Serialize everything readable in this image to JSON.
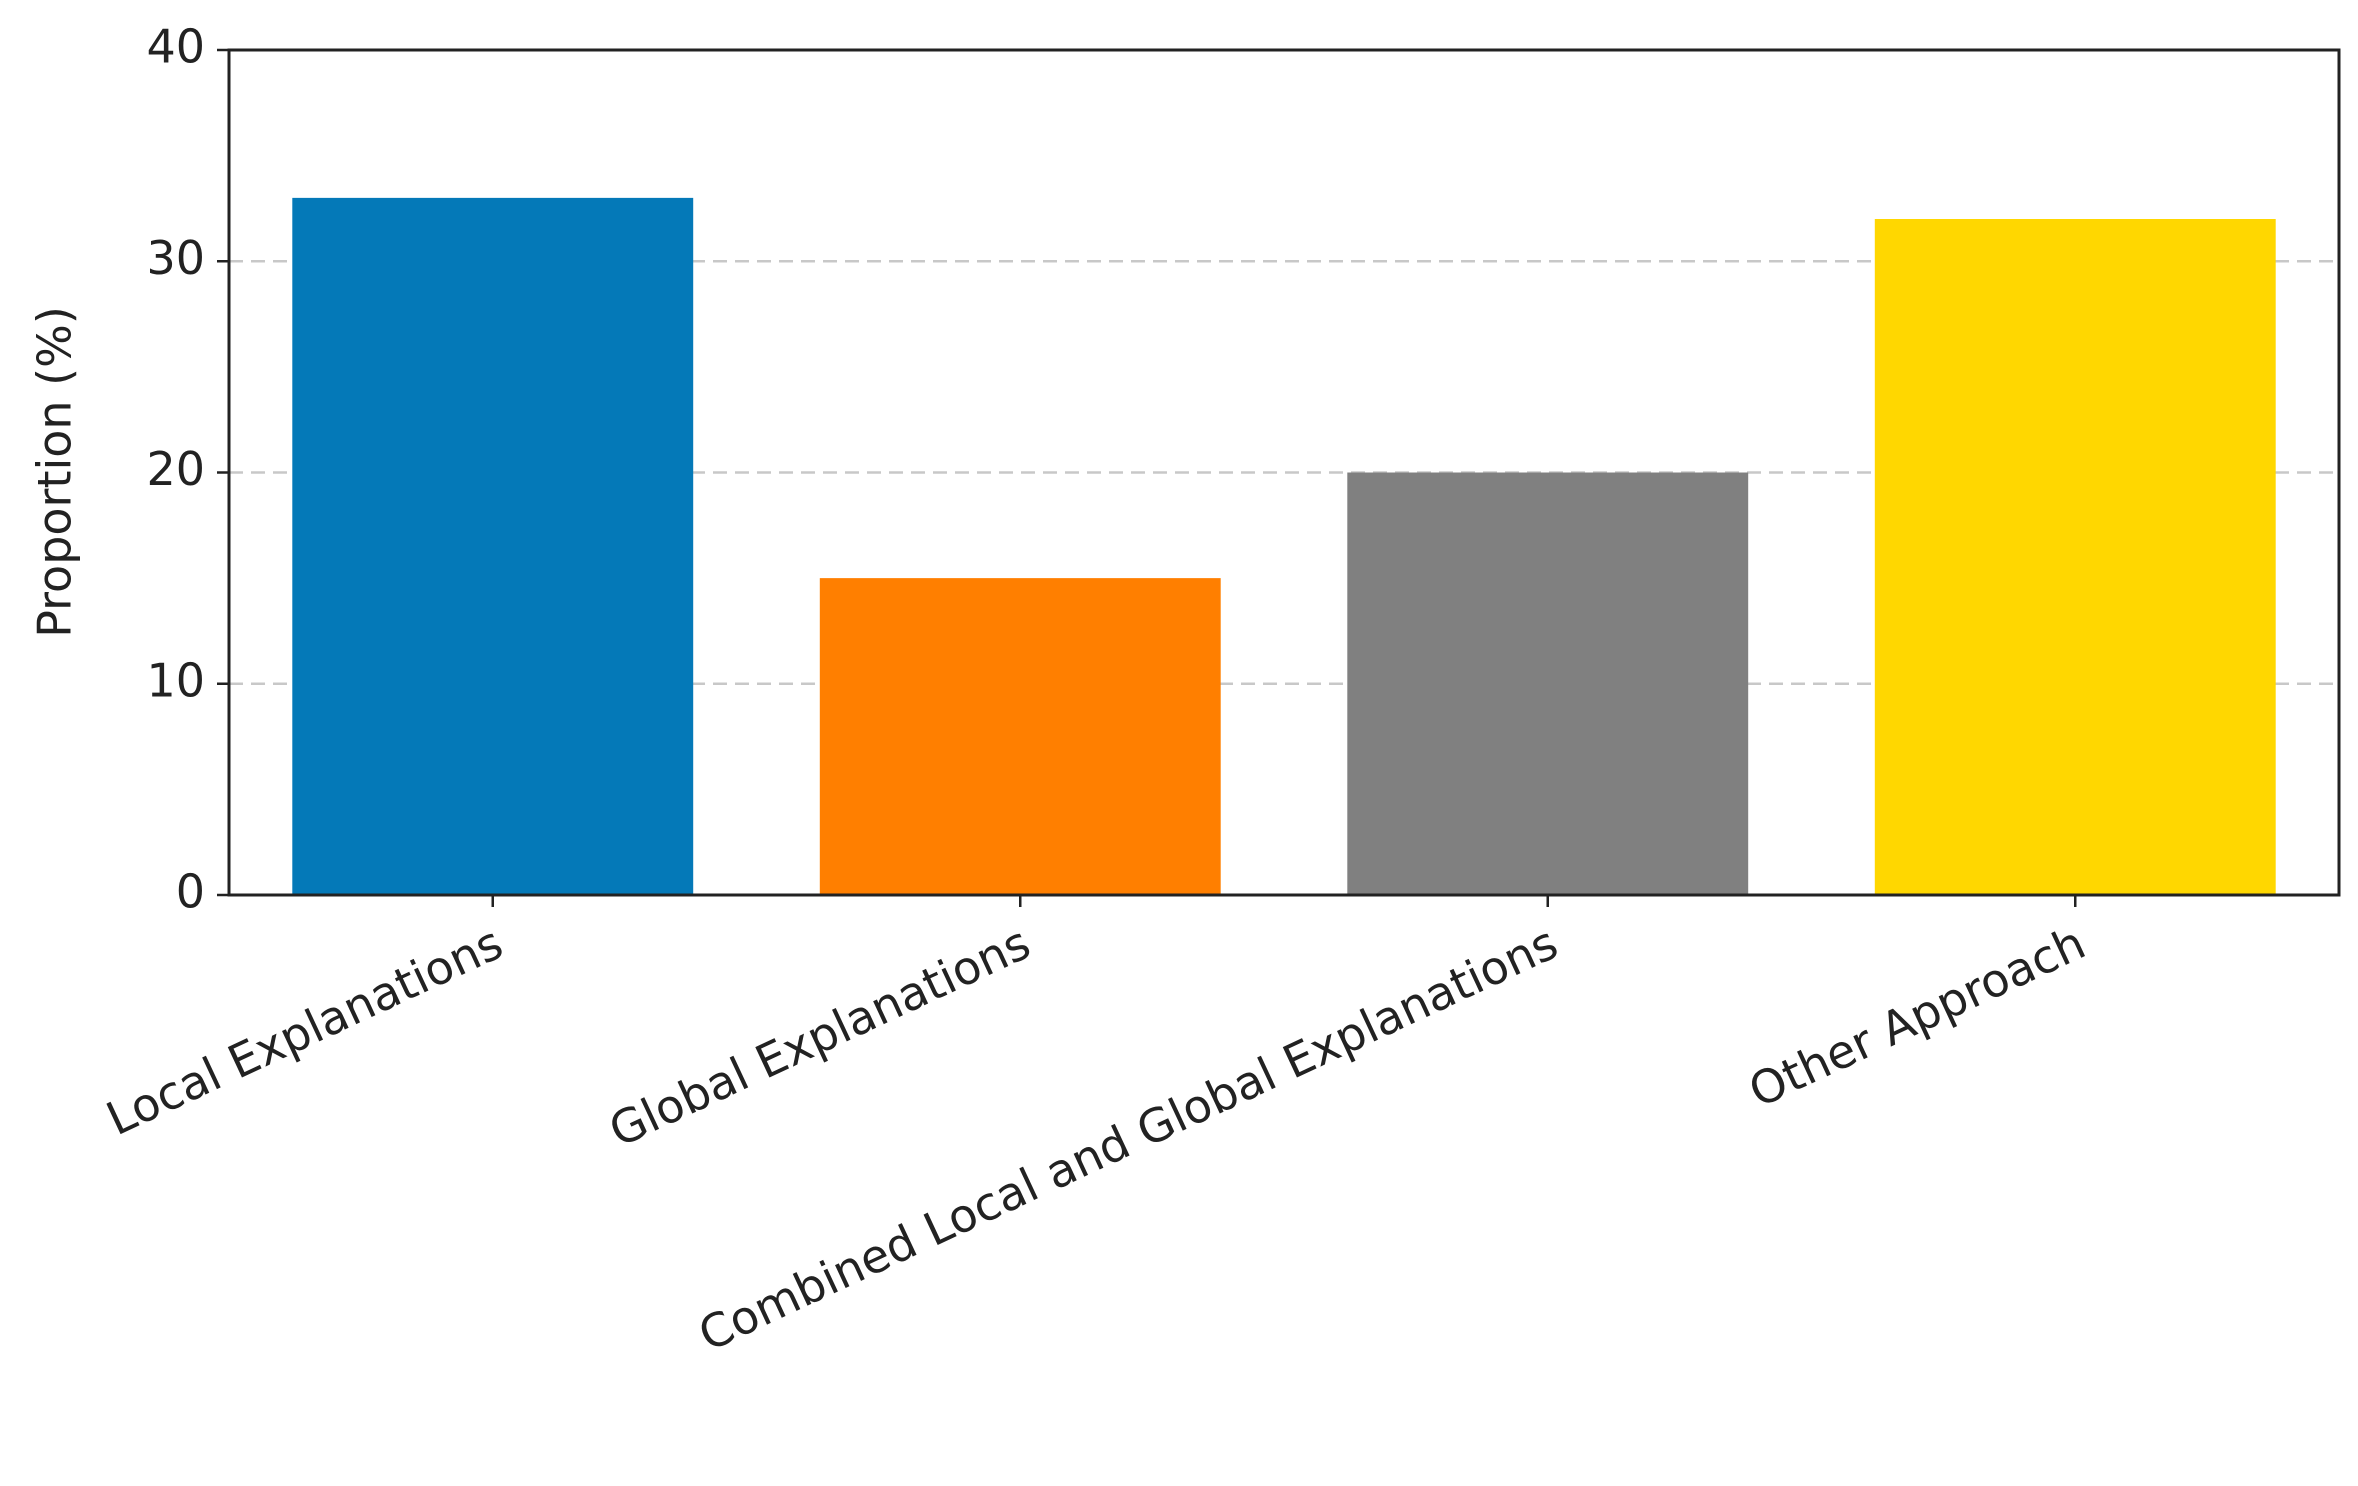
{
  "chart_data": {
    "type": "bar",
    "y_label": "Proportion (%)",
    "categories": [
      "Local Explanations",
      "Global Explanations",
      "Combined Local and Global Explanations",
      "Other Approach"
    ],
    "values": [
      33,
      15,
      20,
      32
    ],
    "colors": [
      "#0479b8",
      "#ff7f00",
      "#808080",
      "#ffd700"
    ],
    "ylim": [
      0,
      40
    ],
    "yticks": [
      0,
      10,
      20,
      30,
      40
    ],
    "grid": true
  }
}
